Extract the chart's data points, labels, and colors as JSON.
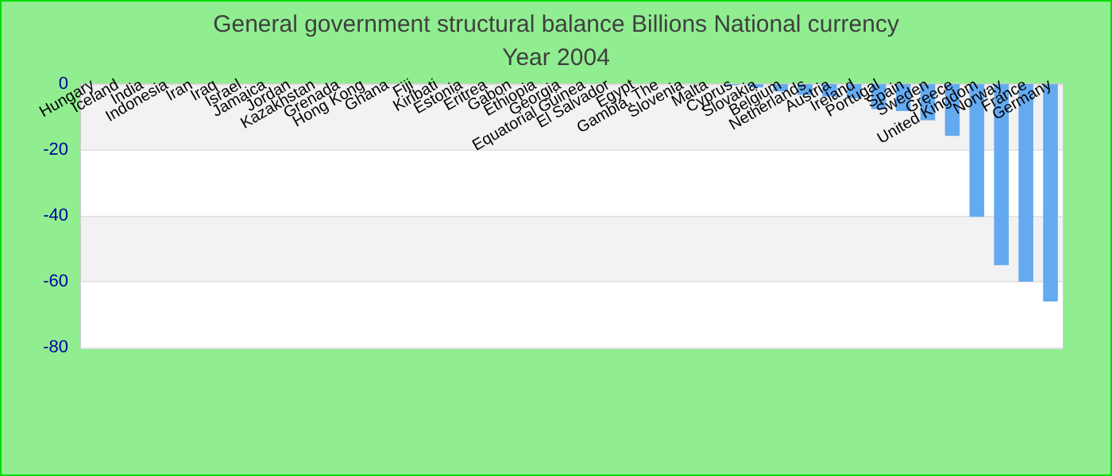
{
  "chart_data": {
    "type": "bar",
    "title": "General government structural balance Billions National currency",
    "subtitle": "Year 2004",
    "categories": [
      "Hungary",
      "Iceland",
      "India",
      "Indonesia",
      "Iran",
      "Iraq",
      "Israel",
      "Jamaica",
      "Jordan",
      "Kazakhstan",
      "Grenada",
      "Hong Kong",
      "Ghana",
      "Fiji",
      "Kiribati",
      "Estonia",
      "Eritrea",
      "Gabon",
      "Ethiopia",
      "Georgia",
      "Equatorial Guinea",
      "El Salvador",
      "Egypt",
      "Gambia, The",
      "Slovenia",
      "Malta",
      "Cyprus",
      "Slovakia",
      "Belgium",
      "Netherlands",
      "Austria",
      "Ireland",
      "Portugal",
      "Spain",
      "Sweden",
      "Greece",
      "United Kingdom",
      "Norway",
      "France",
      "Germany"
    ],
    "values": [
      null,
      null,
      null,
      null,
      null,
      null,
      null,
      null,
      null,
      null,
      null,
      null,
      null,
      null,
      null,
      null,
      null,
      null,
      null,
      null,
      null,
      null,
      null,
      null,
      null,
      null,
      -0.3,
      -1,
      -2.2,
      -3.3,
      -3.8,
      -4.3,
      -7.6,
      -8.2,
      -11,
      -15.7,
      -40.3,
      -55,
      -60,
      -66
    ],
    "color": "#64aaf0",
    "ylim": [
      -80,
      0
    ],
    "yticks": [
      -80,
      -60,
      -40,
      -20,
      0
    ],
    "grid": "y"
  }
}
